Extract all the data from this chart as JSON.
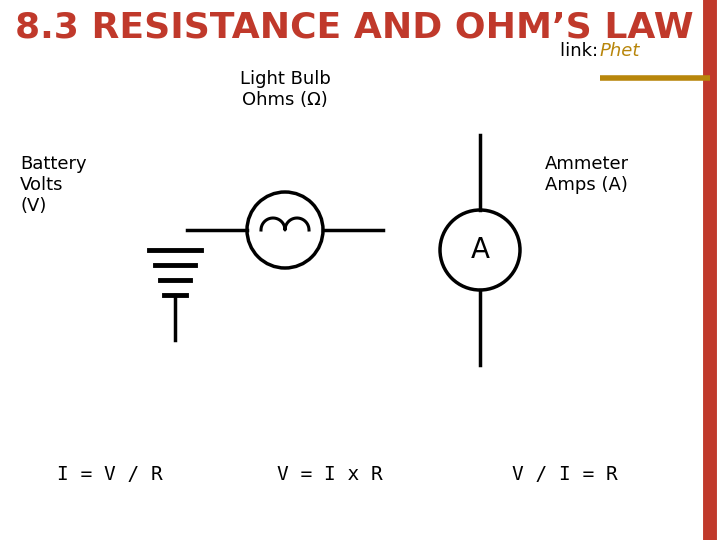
{
  "title": "8.3 RESISTANCE AND OHM’S LAW",
  "title_color": "#C0392B",
  "link_text": "link: ",
  "link_label": "Phet",
  "link_color": "#B8860B",
  "bg_color": "#FFFFFF",
  "battery_label": "Battery\nVolts\n(V)",
  "bulb_label": "Light Bulb\nOhms (Ω)",
  "ammeter_label": "Ammeter\nAmps (A)",
  "formula1": "I = V / R",
  "formula2": "V = I x R",
  "formula3": "V / I = R",
  "border_color": "#C0392B",
  "accent_color": "#B8860B",
  "title_fontsize": 26,
  "label_fontsize": 13,
  "formula_fontsize": 14
}
